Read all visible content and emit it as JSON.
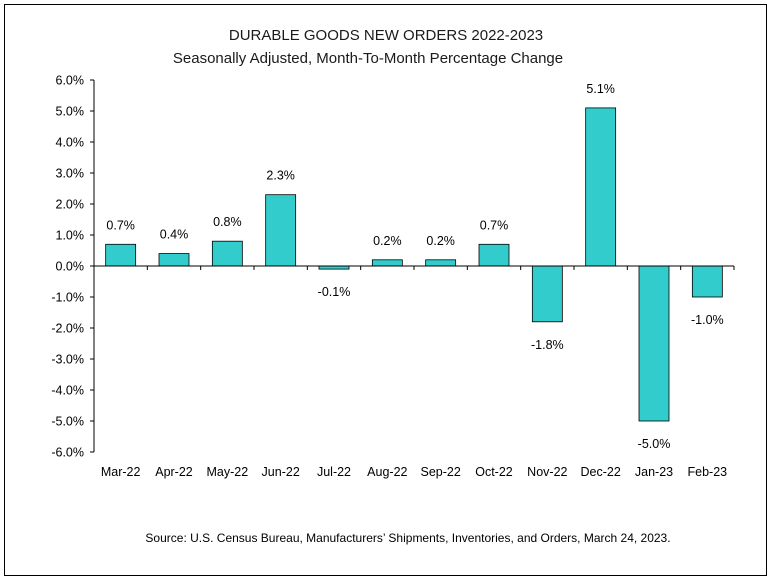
{
  "chart_data": {
    "type": "bar",
    "title": "DURABLE GOODS NEW ORDERS 2022-2023",
    "subtitle": "Seasonally Adjusted,  Month-To-Month Percentage Change",
    "categories": [
      "Mar-22",
      "Apr-22",
      "May-22",
      "Jun-22",
      "Jul-22",
      "Aug-22",
      "Sep-22",
      "Oct-22",
      "Nov-22",
      "Dec-22",
      "Jan-23",
      "Feb-23"
    ],
    "values": [
      0.7,
      0.4,
      0.8,
      2.3,
      -0.1,
      0.2,
      0.2,
      0.7,
      -1.8,
      5.1,
      -5.0,
      -1.0
    ],
    "data_labels": [
      "0.7%",
      "0.4%",
      "0.8%",
      "2.3%",
      "-0.1%",
      "0.2%",
      "0.2%",
      "0.7%",
      "-1.8%",
      "5.1%",
      "-5.0%",
      "-1.0%"
    ],
    "y_ticks": [
      "6.0%",
      "5.0%",
      "4.0%",
      "3.0%",
      "2.0%",
      "1.0%",
      "0.0%",
      "-1.0%",
      "-2.0%",
      "-3.0%",
      "-4.0%",
      "-5.0%",
      "-6.0%"
    ],
    "ylim": [
      -6,
      6
    ],
    "xlabel": "",
    "ylabel": "",
    "grid": false,
    "bar_color": "#33CCCC",
    "bar_edge_color": "#000000"
  },
  "footer": {
    "source": "Source: U.S. Census Bureau, Manufacturers’ Shipments, Inventories, and Orders, March 24, 2023."
  }
}
